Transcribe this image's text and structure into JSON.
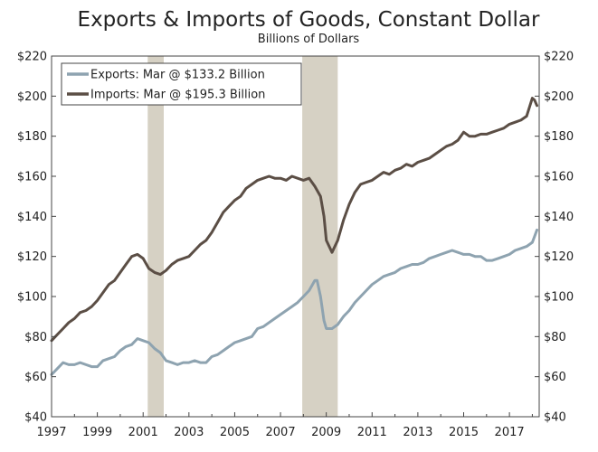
{
  "chart_data": {
    "type": "line",
    "title": "Exports & Imports of Goods, Constant Dollar",
    "subtitle": "Billions of Dollars",
    "xlabel": "",
    "ylabel": "",
    "xlim": [
      1997.0,
      2018.3
    ],
    "ylim": [
      40,
      220
    ],
    "x_ticks": [
      "1997",
      "1999",
      "2001",
      "2003",
      "2005",
      "2007",
      "2009",
      "2011",
      "2013",
      "2015",
      "2017"
    ],
    "x_tick_values": [
      1997,
      1999,
      2001,
      2003,
      2005,
      2007,
      2009,
      2011,
      2013,
      2015,
      2017
    ],
    "y_ticks_left": [
      "$40",
      "$60",
      "$80",
      "$100",
      "$120",
      "$140",
      "$160",
      "$180",
      "$200",
      "$220"
    ],
    "y_ticks_right": [
      "$40",
      "$60",
      "$80",
      "$100",
      "$120",
      "$140",
      "$160",
      "$180",
      "$200",
      "$220"
    ],
    "y_tick_values": [
      40,
      60,
      80,
      100,
      120,
      140,
      160,
      180,
      200,
      220
    ],
    "grid": false,
    "legend_position": "top-left",
    "recessions": [
      {
        "start": 2001.2,
        "end": 2001.9
      },
      {
        "start": 2007.95,
        "end": 2009.5
      }
    ],
    "recession_color": "#d6d1c4",
    "series": [
      {
        "name": "Exports: Mar @ $133.2 Billion",
        "color": "#8ea3b0",
        "x": [
          1997.0,
          1997.25,
          1997.5,
          1997.75,
          1998.0,
          1998.25,
          1998.5,
          1998.75,
          1999.0,
          1999.25,
          1999.5,
          1999.75,
          2000.0,
          2000.25,
          2000.5,
          2000.75,
          2001.0,
          2001.25,
          2001.5,
          2001.75,
          2002.0,
          2002.25,
          2002.5,
          2002.75,
          2003.0,
          2003.25,
          2003.5,
          2003.75,
          2004.0,
          2004.25,
          2004.5,
          2004.75,
          2005.0,
          2005.25,
          2005.5,
          2005.75,
          2006.0,
          2006.25,
          2006.5,
          2006.75,
          2007.0,
          2007.25,
          2007.5,
          2007.75,
          2008.0,
          2008.25,
          2008.5,
          2008.6,
          2008.75,
          2008.9,
          2009.0,
          2009.25,
          2009.5,
          2009.75,
          2010.0,
          2010.25,
          2010.5,
          2010.75,
          2011.0,
          2011.25,
          2011.5,
          2011.75,
          2012.0,
          2012.25,
          2012.5,
          2012.75,
          2013.0,
          2013.25,
          2013.5,
          2013.75,
          2014.0,
          2014.25,
          2014.5,
          2014.75,
          2015.0,
          2015.25,
          2015.5,
          2015.75,
          2016.0,
          2016.25,
          2016.5,
          2016.75,
          2017.0,
          2017.25,
          2017.5,
          2017.75,
          2018.0,
          2018.1,
          2018.2
        ],
        "values": [
          61,
          64,
          67,
          66,
          66,
          67,
          66,
          65,
          65,
          68,
          69,
          70,
          73,
          75,
          76,
          79,
          78,
          77,
          74,
          72,
          68,
          67,
          66,
          67,
          67,
          68,
          67,
          67,
          70,
          71,
          73,
          75,
          77,
          78,
          79,
          80,
          84,
          85,
          87,
          89,
          91,
          93,
          95,
          97,
          100,
          103,
          108,
          108,
          100,
          88,
          84,
          84,
          86,
          90,
          93,
          97,
          100,
          103,
          106,
          108,
          110,
          111,
          112,
          114,
          115,
          116,
          116,
          117,
          119,
          120,
          121,
          122,
          123,
          122,
          121,
          121,
          120,
          120,
          118,
          118,
          119,
          120,
          121,
          123,
          124,
          125,
          127,
          130,
          133.2
        ]
      },
      {
        "name": "Imports: Mar @ $195.3 Billion",
        "color": "#5b4e45",
        "x": [
          1997.0,
          1997.25,
          1997.5,
          1997.75,
          1998.0,
          1998.25,
          1998.5,
          1998.75,
          1999.0,
          1999.25,
          1999.5,
          1999.75,
          2000.0,
          2000.25,
          2000.5,
          2000.75,
          2001.0,
          2001.25,
          2001.5,
          2001.75,
          2002.0,
          2002.25,
          2002.5,
          2002.75,
          2003.0,
          2003.25,
          2003.5,
          2003.75,
          2004.0,
          2004.25,
          2004.5,
          2004.75,
          2005.0,
          2005.25,
          2005.5,
          2005.75,
          2006.0,
          2006.25,
          2006.5,
          2006.75,
          2007.0,
          2007.25,
          2007.5,
          2007.75,
          2008.0,
          2008.25,
          2008.5,
          2008.75,
          2008.9,
          2009.0,
          2009.25,
          2009.5,
          2009.75,
          2010.0,
          2010.25,
          2010.5,
          2010.75,
          2011.0,
          2011.25,
          2011.5,
          2011.75,
          2012.0,
          2012.25,
          2012.5,
          2012.75,
          2013.0,
          2013.25,
          2013.5,
          2013.75,
          2014.0,
          2014.25,
          2014.5,
          2014.75,
          2015.0,
          2015.25,
          2015.5,
          2015.75,
          2016.0,
          2016.25,
          2016.5,
          2016.75,
          2017.0,
          2017.25,
          2017.5,
          2017.75,
          2018.0,
          2018.1,
          2018.2
        ],
        "values": [
          78,
          81,
          84,
          87,
          89,
          92,
          93,
          95,
          98,
          102,
          106,
          108,
          112,
          116,
          120,
          121,
          119,
          114,
          112,
          111,
          113,
          116,
          118,
          119,
          120,
          123,
          126,
          128,
          132,
          137,
          142,
          145,
          148,
          150,
          154,
          156,
          158,
          159,
          160,
          159,
          159,
          158,
          160,
          159,
          158,
          159,
          155,
          150,
          140,
          128,
          122,
          128,
          138,
          146,
          152,
          156,
          157,
          158,
          160,
          162,
          161,
          163,
          164,
          166,
          165,
          167,
          168,
          169,
          171,
          173,
          175,
          176,
          178,
          182,
          180,
          180,
          181,
          181,
          182,
          183,
          184,
          186,
          187,
          188,
          190,
          199,
          198,
          195.3
        ]
      }
    ]
  }
}
